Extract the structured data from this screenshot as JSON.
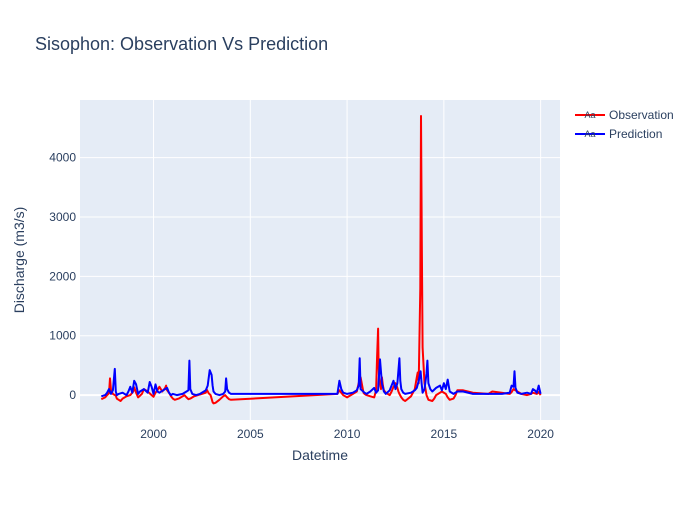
{
  "chart_data": {
    "type": "line",
    "title": "Sisophon: Observation Vs Prediction",
    "xlabel": "Datetime",
    "ylabel": "Discharge (m3/s)",
    "xlim": [
      1996.2,
      2021.0
    ],
    "ylim": [
      -420,
      4970
    ],
    "x_ticks": [
      2000,
      2005,
      2010,
      2015,
      2020
    ],
    "x_tick_labels": [
      "2000",
      "2005",
      "2010",
      "2015",
      "2020"
    ],
    "y_ticks": [
      0,
      1000,
      2000,
      3000,
      4000
    ],
    "y_tick_labels": [
      "0",
      "1000",
      "2000",
      "3000",
      "4000"
    ],
    "grid": true,
    "legend_position": "top-right",
    "legend_glyph": "Aa",
    "series": [
      {
        "name": "Observation",
        "color": "#ff0000",
        "x": [
          1997.3,
          1997.5,
          1997.6,
          1997.7,
          1997.75,
          1997.8,
          1997.9,
          1998.05,
          1998.1,
          1998.2,
          1998.3,
          1998.4,
          1998.6,
          1998.8,
          1998.95,
          1999.0,
          1999.1,
          1999.2,
          1999.3,
          1999.4,
          1999.5,
          1999.7,
          1999.9,
          2000.0,
          2000.1,
          2000.2,
          2000.3,
          2000.45,
          2000.6,
          2000.65,
          2000.7,
          2000.8,
          2000.9,
          2001.0,
          2001.1,
          2001.3,
          2001.5,
          2001.6,
          2001.7,
          2001.8,
          2001.9,
          2002.0,
          2002.1,
          2002.3,
          2002.5,
          2002.7,
          2002.75,
          2002.85,
          2002.95,
          2003.05,
          2003.1,
          2003.2,
          2003.4,
          2003.6,
          2003.7,
          2003.8,
          2003.9,
          2004.0,
          2009.5,
          2009.6,
          2009.7,
          2009.8,
          2009.9,
          2010.0,
          2010.3,
          2010.5,
          2010.6,
          2010.7,
          2010.8,
          2010.85,
          2010.9,
          2011.0,
          2011.2,
          2011.4,
          2011.5,
          2011.55,
          2011.6,
          2011.62,
          2011.65,
          2011.7,
          2011.75,
          2011.8,
          2011.85,
          2011.9,
          2012.0,
          2012.2,
          2012.3,
          2012.4,
          2012.5,
          2012.6,
          2012.65,
          2012.7,
          2012.8,
          2012.9,
          2013.0,
          2013.3,
          2013.5,
          2013.6,
          2013.65,
          2013.7,
          2013.78,
          2013.82,
          2013.86,
          2013.9,
          2014.0,
          2014.1,
          2014.2,
          2014.4,
          2014.5,
          2014.6,
          2014.7,
          2014.8,
          2014.9,
          2015.1,
          2015.2,
          2015.3,
          2015.5,
          2015.6,
          2015.7,
          2016.0,
          2016.5,
          2017.3,
          2017.5,
          2018.4,
          2018.5,
          2018.6,
          2018.8,
          2019.0,
          2019.3,
          2019.5,
          2019.6,
          2019.8,
          2019.9,
          2020.0
        ],
        "y": [
          -70,
          -40,
          0,
          30,
          280,
          80,
          20,
          -10,
          -60,
          -80,
          -100,
          -60,
          -20,
          0,
          60,
          130,
          40,
          -40,
          -10,
          20,
          100,
          60,
          0,
          -30,
          40,
          80,
          140,
          60,
          120,
          160,
          80,
          40,
          -20,
          -60,
          -80,
          -60,
          -20,
          0,
          -40,
          -70,
          -60,
          -40,
          -20,
          0,
          20,
          40,
          90,
          30,
          0,
          -120,
          -140,
          -130,
          -80,
          -20,
          0,
          -40,
          -70,
          -80,
          20,
          80,
          40,
          0,
          -20,
          -40,
          20,
          60,
          200,
          300,
          120,
          40,
          20,
          0,
          -20,
          -40,
          80,
          650,
          1120,
          620,
          300,
          200,
          100,
          300,
          160,
          80,
          40,
          0,
          60,
          140,
          200,
          120,
          60,
          20,
          -40,
          -80,
          -100,
          -20,
          100,
          300,
          380,
          200,
          1800,
          4700,
          2600,
          800,
          200,
          0,
          -80,
          -100,
          -60,
          0,
          20,
          40,
          60,
          20,
          -40,
          -80,
          -60,
          0,
          80,
          80,
          40,
          20,
          60,
          20,
          50,
          100,
          60,
          20,
          0,
          20,
          40,
          20,
          50,
          0
        ],
        "note_shape_ref": "observation"
      },
      {
        "name": "Prediction",
        "color": "#0000ff",
        "x": [
          1997.3,
          1997.5,
          1997.6,
          1997.7,
          1997.8,
          1997.9,
          1998.0,
          1998.05,
          1998.1,
          1998.2,
          1998.4,
          1998.6,
          1998.7,
          1998.8,
          1998.9,
          1999.0,
          1999.1,
          1999.2,
          1999.3,
          1999.5,
          1999.7,
          1999.8,
          1999.9,
          2000.0,
          2000.1,
          2000.2,
          2000.3,
          2000.5,
          2000.7,
          2000.8,
          2000.9,
          2001.0,
          2001.2,
          2001.5,
          2001.7,
          2001.8,
          2001.85,
          2001.9,
          2002.0,
          2002.2,
          2002.4,
          2002.6,
          2002.7,
          2002.8,
          2002.9,
          2003.0,
          2003.05,
          2003.1,
          2003.2,
          2003.4,
          2003.6,
          2003.7,
          2003.75,
          2003.8,
          2003.9,
          2004.0,
          2009.5,
          2009.6,
          2009.7,
          2009.8,
          2010.0,
          2010.3,
          2010.5,
          2010.6,
          2010.65,
          2010.7,
          2010.9,
          2011.0,
          2011.2,
          2011.4,
          2011.5,
          2011.6,
          2011.7,
          2011.8,
          2011.9,
          2012.0,
          2012.2,
          2012.4,
          2012.5,
          2012.6,
          2012.7,
          2012.75,
          2012.8,
          2012.9,
          2013.0,
          2013.3,
          2013.5,
          2013.6,
          2013.7,
          2013.8,
          2013.85,
          2013.9,
          2014.0,
          2014.1,
          2014.15,
          2014.2,
          2014.3,
          2014.4,
          2014.6,
          2014.8,
          2014.9,
          2015.0,
          2015.1,
          2015.2,
          2015.3,
          2015.5,
          2015.7,
          2016.0,
          2016.5,
          2017.3,
          2018.0,
          2018.4,
          2018.5,
          2018.6,
          2018.65,
          2018.7,
          2018.8,
          2019.0,
          2019.3,
          2019.5,
          2019.6,
          2019.7,
          2019.8,
          2019.9,
          2020.0
        ],
        "y": [
          -20,
          0,
          40,
          100,
          20,
          80,
          440,
          60,
          0,
          20,
          40,
          0,
          60,
          140,
          40,
          240,
          180,
          20,
          60,
          100,
          40,
          220,
          140,
          20,
          180,
          60,
          40,
          80,
          120,
          40,
          0,
          20,
          0,
          20,
          60,
          80,
          580,
          100,
          20,
          0,
          20,
          60,
          80,
          160,
          420,
          340,
          160,
          60,
          20,
          0,
          20,
          60,
          280,
          100,
          40,
          20,
          20,
          240,
          100,
          40,
          20,
          40,
          80,
          160,
          620,
          100,
          40,
          20,
          60,
          120,
          40,
          80,
          600,
          200,
          60,
          20,
          80,
          240,
          100,
          200,
          620,
          240,
          100,
          40,
          20,
          40,
          80,
          120,
          240,
          400,
          200,
          40,
          100,
          360,
          580,
          200,
          100,
          60,
          120,
          160,
          80,
          200,
          100,
          260,
          60,
          20,
          60,
          60,
          20,
          20,
          20,
          40,
          160,
          140,
          400,
          120,
          40,
          20,
          40,
          20,
          100,
          80,
          40,
          160,
          20
        ]
      }
    ]
  }
}
